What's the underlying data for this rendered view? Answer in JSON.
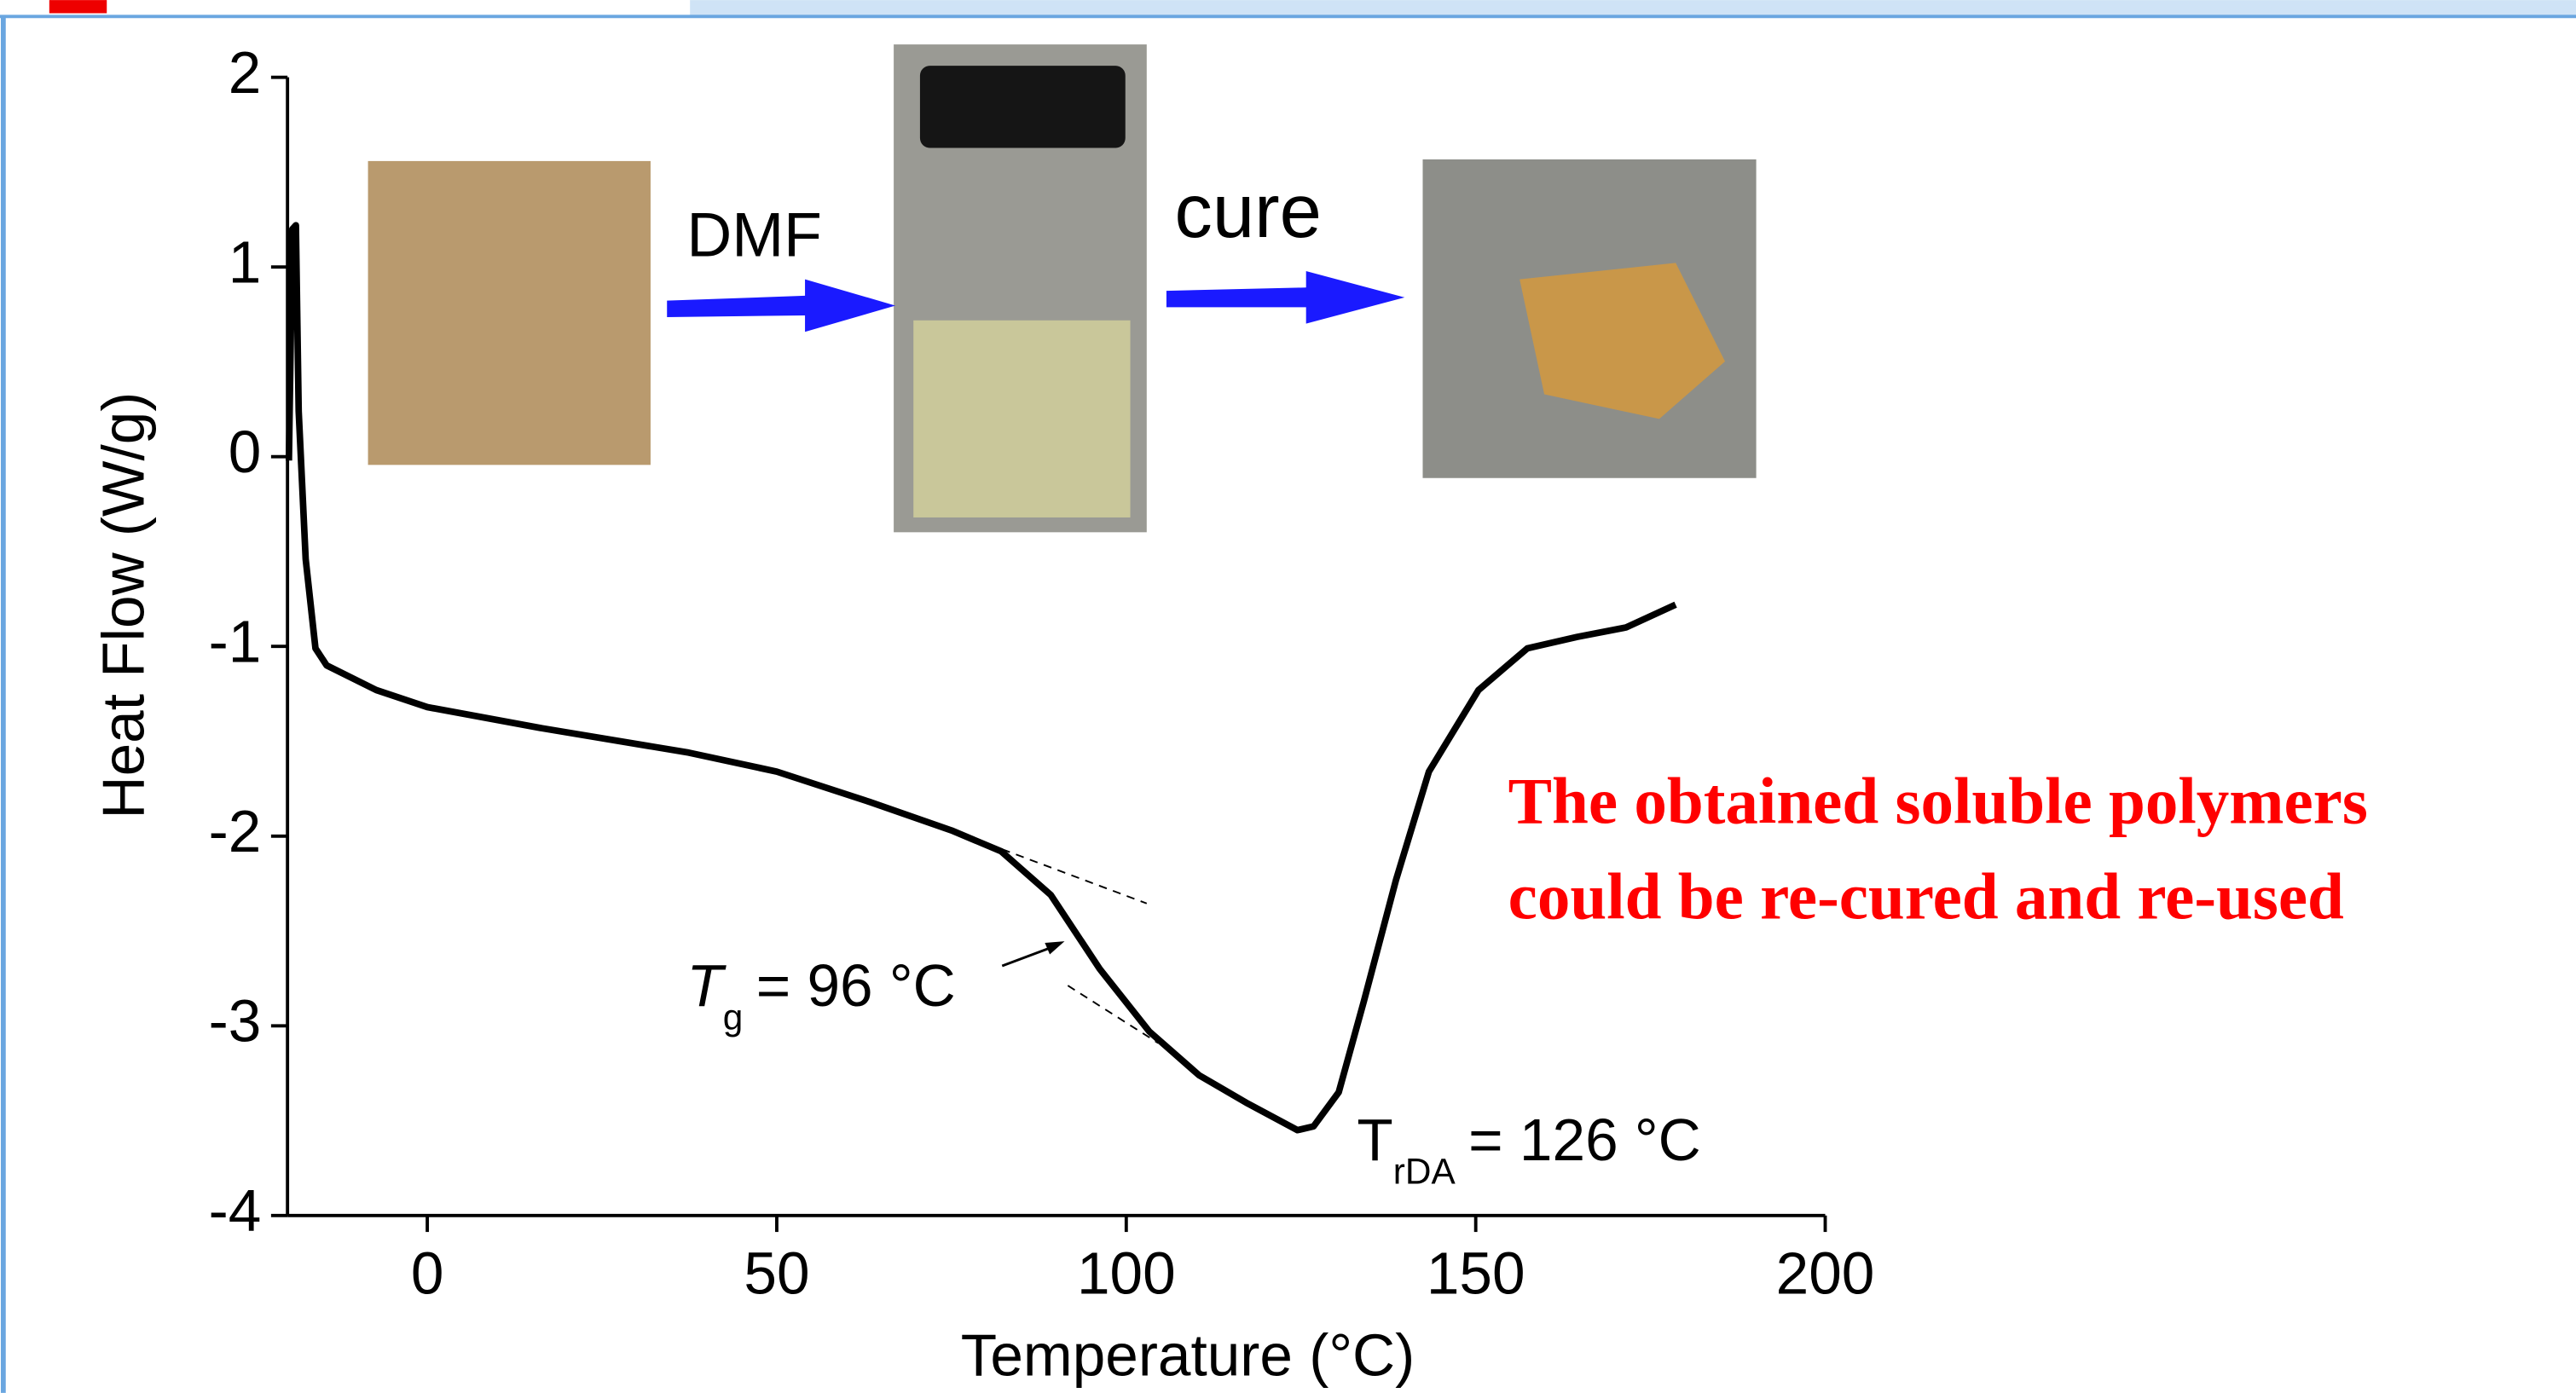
{
  "chart_data": {
    "type": "line",
    "x_label": "Temperature (°C)",
    "y_label": "Heat Flow (W/g)",
    "x": [
      -19.8,
      -19.3,
      -18.8,
      -18.4,
      -17.4,
      -16,
      -14.4,
      -7.3,
      0,
      16.2,
      37.4,
      50,
      63.3,
      75,
      82.1,
      89.2,
      96.2,
      103.3,
      110.4,
      117.4,
      124.5,
      126.8,
      130.4,
      134,
      138.6,
      143.3,
      150.4,
      157.4,
      164.5,
      171.5,
      178.6
    ],
    "values": [
      -0.02,
      1.2,
      1.22,
      0.24,
      -0.54,
      -1.01,
      -1.1,
      -1.23,
      -1.32,
      -1.43,
      -1.56,
      -1.66,
      -1.82,
      -1.97,
      -2.08,
      -2.31,
      -2.7,
      -3.03,
      -3.26,
      -3.41,
      -3.55,
      -3.53,
      -3.35,
      -2.87,
      -2.23,
      -1.66,
      -1.23,
      -1.01,
      -0.95,
      -0.9,
      -0.78
    ],
    "color": "#000000",
    "xlim": [
      -20,
      200
    ],
    "xticks": [
      0,
      50,
      100,
      150,
      200
    ],
    "ylim": [
      -4,
      2
    ],
    "yticks": [
      -4,
      -3,
      -2,
      -1,
      0,
      1,
      2
    ],
    "annotations": [
      {
        "symbol": "T",
        "sub": "g",
        "text": "= 96 °C"
      },
      {
        "symbol": "T",
        "sub": "rDA",
        "text": "= 126 °C"
      }
    ],
    "steps": [
      "DMF",
      "cure"
    ],
    "message": [
      "The obtained soluble polymers",
      "could be  re-cured and re-used"
    ]
  }
}
